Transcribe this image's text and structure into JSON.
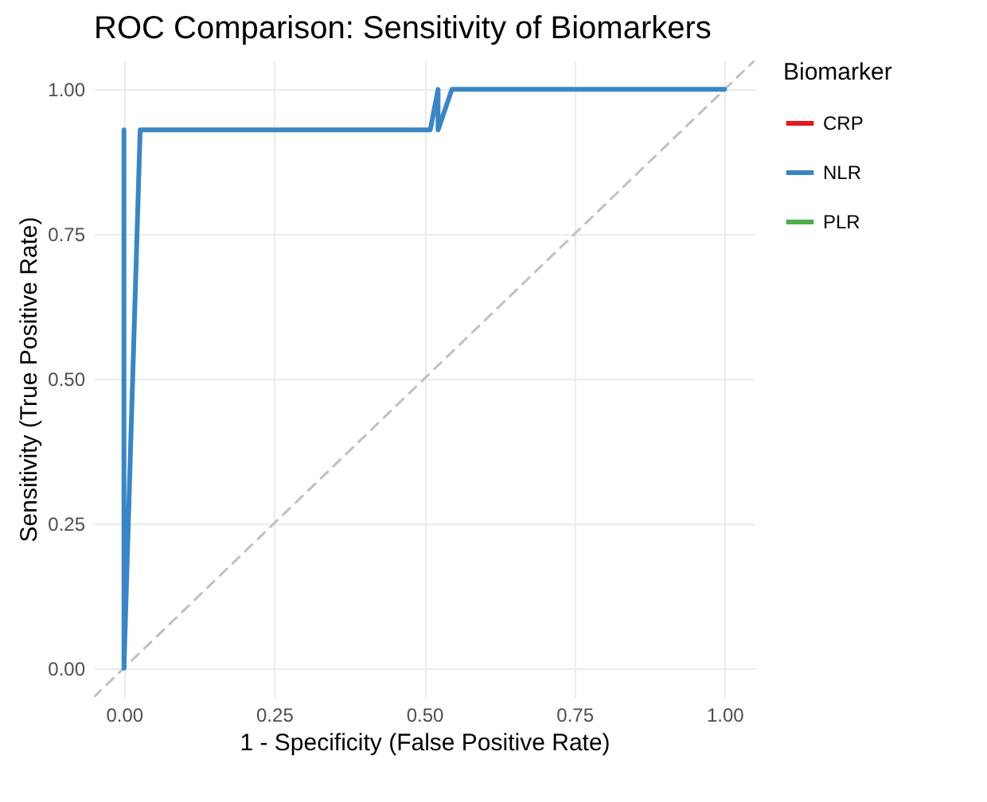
{
  "chart_data": {
    "type": "line",
    "title": "ROC Comparison: Sensitivity of Biomarkers",
    "xlabel": "1 - Specificity (False Positive Rate)",
    "ylabel": "Sensitivity (True Positive Rate)",
    "legend_title": "Biomarker",
    "legend": "right",
    "grid": true,
    "marker": "none",
    "xlim": [
      -0.05,
      1.05
    ],
    "ylim": [
      -0.05,
      1.05
    ],
    "xticks": [
      {
        "value": 0,
        "label": "0.00"
      },
      {
        "value": 0.25,
        "label": "0.25"
      },
      {
        "value": 0.5,
        "label": "0.50"
      },
      {
        "value": 0.75,
        "label": "0.75"
      },
      {
        "value": 1,
        "label": "1.00"
      }
    ],
    "yticks": [
      {
        "value": 0,
        "label": "0.00"
      },
      {
        "value": 0.25,
        "label": "0.25"
      },
      {
        "value": 0.5,
        "label": "0.50"
      },
      {
        "value": 0.75,
        "label": "0.75"
      },
      {
        "value": 1,
        "label": "1.00"
      }
    ],
    "series": [
      {
        "name": "CRP",
        "color": "#e41a1c"
      },
      {
        "name": "NLR",
        "color": "#3a86c4",
        "x": [
          0,
          0,
          0,
          0.027,
          0.51,
          0.523,
          0.523,
          0.546,
          1
        ],
        "values": [
          0,
          0.93,
          0,
          0.93,
          0.93,
          1,
          0.93,
          1,
          1
        ]
      },
      {
        "name": "PLR",
        "color": "#4daf4a"
      },
      {
        "type": "line",
        "color": "#c0c0c0",
        "line_style": "dashed",
        "x": [
          -0.05,
          1.05
        ],
        "values": [
          -0.05,
          1.05
        ]
      }
    ]
  }
}
